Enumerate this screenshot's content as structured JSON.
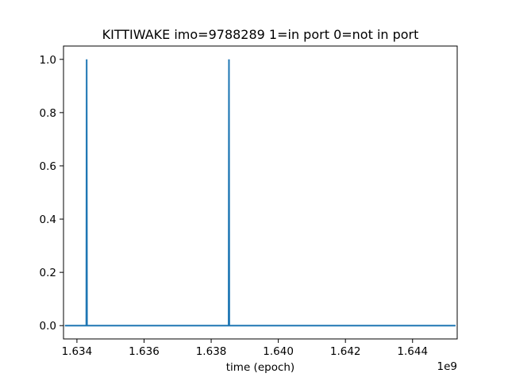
{
  "chart_data": {
    "type": "line",
    "title": "KITTIWAKE imo=9788289 1=in port 0=not in port",
    "xlabel": "time (epoch)",
    "ylabel": "",
    "x_offset_label": "1e9",
    "xlim": [
      1633600000,
      1645330000
    ],
    "ylim": [
      -0.05,
      1.05
    ],
    "x_ticks": [
      1634000000,
      1636000000,
      1638000000,
      1640000000,
      1642000000,
      1644000000
    ],
    "x_tick_labels": [
      "1.634",
      "1.636",
      "1.638",
      "1.640",
      "1.642",
      "1.644"
    ],
    "y_ticks": [
      0.0,
      0.2,
      0.4,
      0.6,
      0.8,
      1.0
    ],
    "y_tick_labels": [
      "0.0",
      "0.2",
      "0.4",
      "0.6",
      "0.8",
      "1.0"
    ],
    "grid": false,
    "series": [
      {
        "color": "#1f77b4",
        "x": [
          1633640000,
          1634280000,
          1634290000,
          1634300000,
          1638520000,
          1638530000,
          1638540000,
          1645280000
        ],
        "y": [
          0,
          0,
          1,
          0,
          0,
          1,
          0,
          0
        ]
      }
    ]
  }
}
